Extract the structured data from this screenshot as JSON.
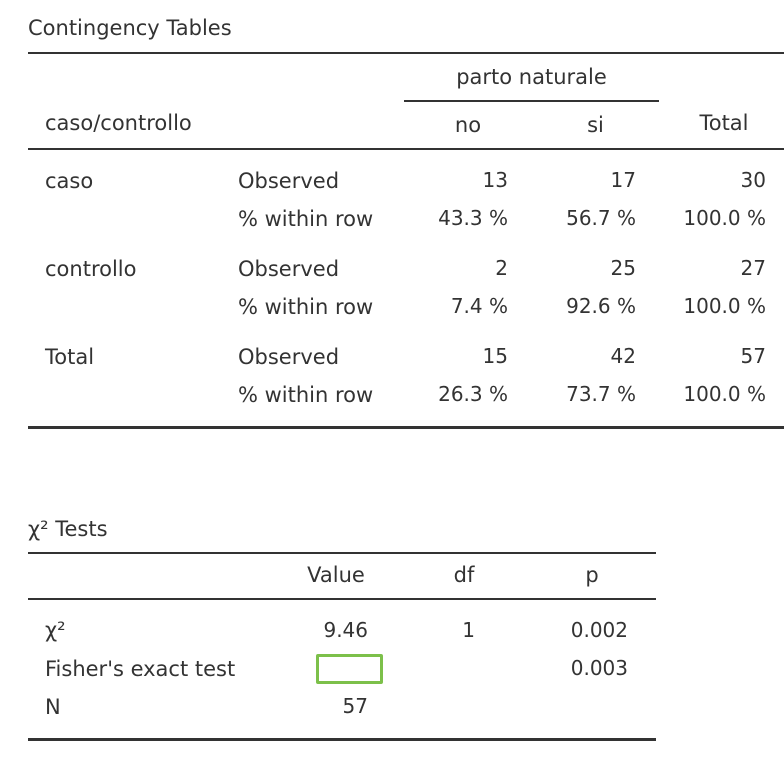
{
  "contingency": {
    "title": "Contingency Tables",
    "group_header": "parto naturale",
    "row_var_header": "caso/controllo",
    "col_no": "no",
    "col_si": "si",
    "col_total": "Total",
    "rows": [
      {
        "label": "caso",
        "observed_label": "Observed",
        "pct_label": "% within row",
        "observed": {
          "no": "13",
          "si": "17",
          "total": "30"
        },
        "pct": {
          "no": "43.3 %",
          "si": "56.7 %",
          "total": "100.0 %"
        }
      },
      {
        "label": "controllo",
        "observed_label": "Observed",
        "pct_label": "% within row",
        "observed": {
          "no": "2",
          "si": "25",
          "total": "27"
        },
        "pct": {
          "no": "7.4 %",
          "si": "92.6 %",
          "total": "100.0 %"
        }
      },
      {
        "label": "Total",
        "observed_label": "Observed",
        "pct_label": "% within row",
        "observed": {
          "no": "15",
          "si": "42",
          "total": "57"
        },
        "pct": {
          "no": "26.3 %",
          "si": "73.7 %",
          "total": "100.0 %"
        }
      }
    ]
  },
  "chi_tests": {
    "title": "χ² Tests",
    "col_value": "Value",
    "col_df": "df",
    "col_p": "p",
    "rows": [
      {
        "label": "χ²",
        "value": "9.46",
        "df": "1",
        "p": "0.002"
      },
      {
        "label": "Fisher's exact test",
        "value": "",
        "df": "",
        "p": "0.003"
      },
      {
        "label": "N",
        "value": "57",
        "df": "",
        "p": ""
      }
    ]
  },
  "colors": {
    "text": "#333333",
    "rule": "#333333",
    "highlight": "#7cc04a"
  }
}
